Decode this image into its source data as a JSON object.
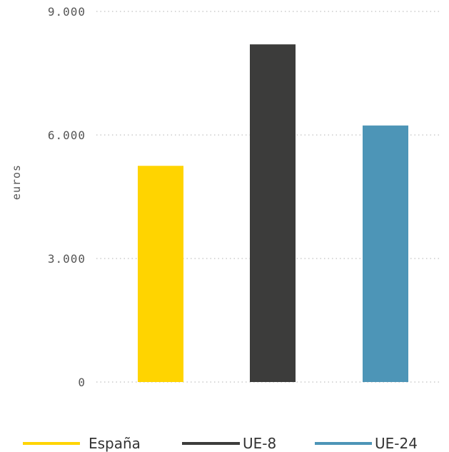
{
  "chart_data": {
    "type": "bar",
    "title": "",
    "xlabel": "",
    "ylabel": "euros",
    "ylim": [
      0,
      9000
    ],
    "yticks": [
      {
        "value": 0,
        "label": "0"
      },
      {
        "value": 3000,
        "label": "3.000"
      },
      {
        "value": 6000,
        "label": "6.000"
      },
      {
        "value": 9000,
        "label": "9.000"
      }
    ],
    "grid": true,
    "legend": "bottom",
    "categories": [
      "España",
      "UE-8",
      "UE-24"
    ],
    "values": [
      5250,
      8200,
      6230
    ],
    "colors": [
      "#FFD400",
      "#3C3C3B",
      "#4D95B7"
    ]
  }
}
